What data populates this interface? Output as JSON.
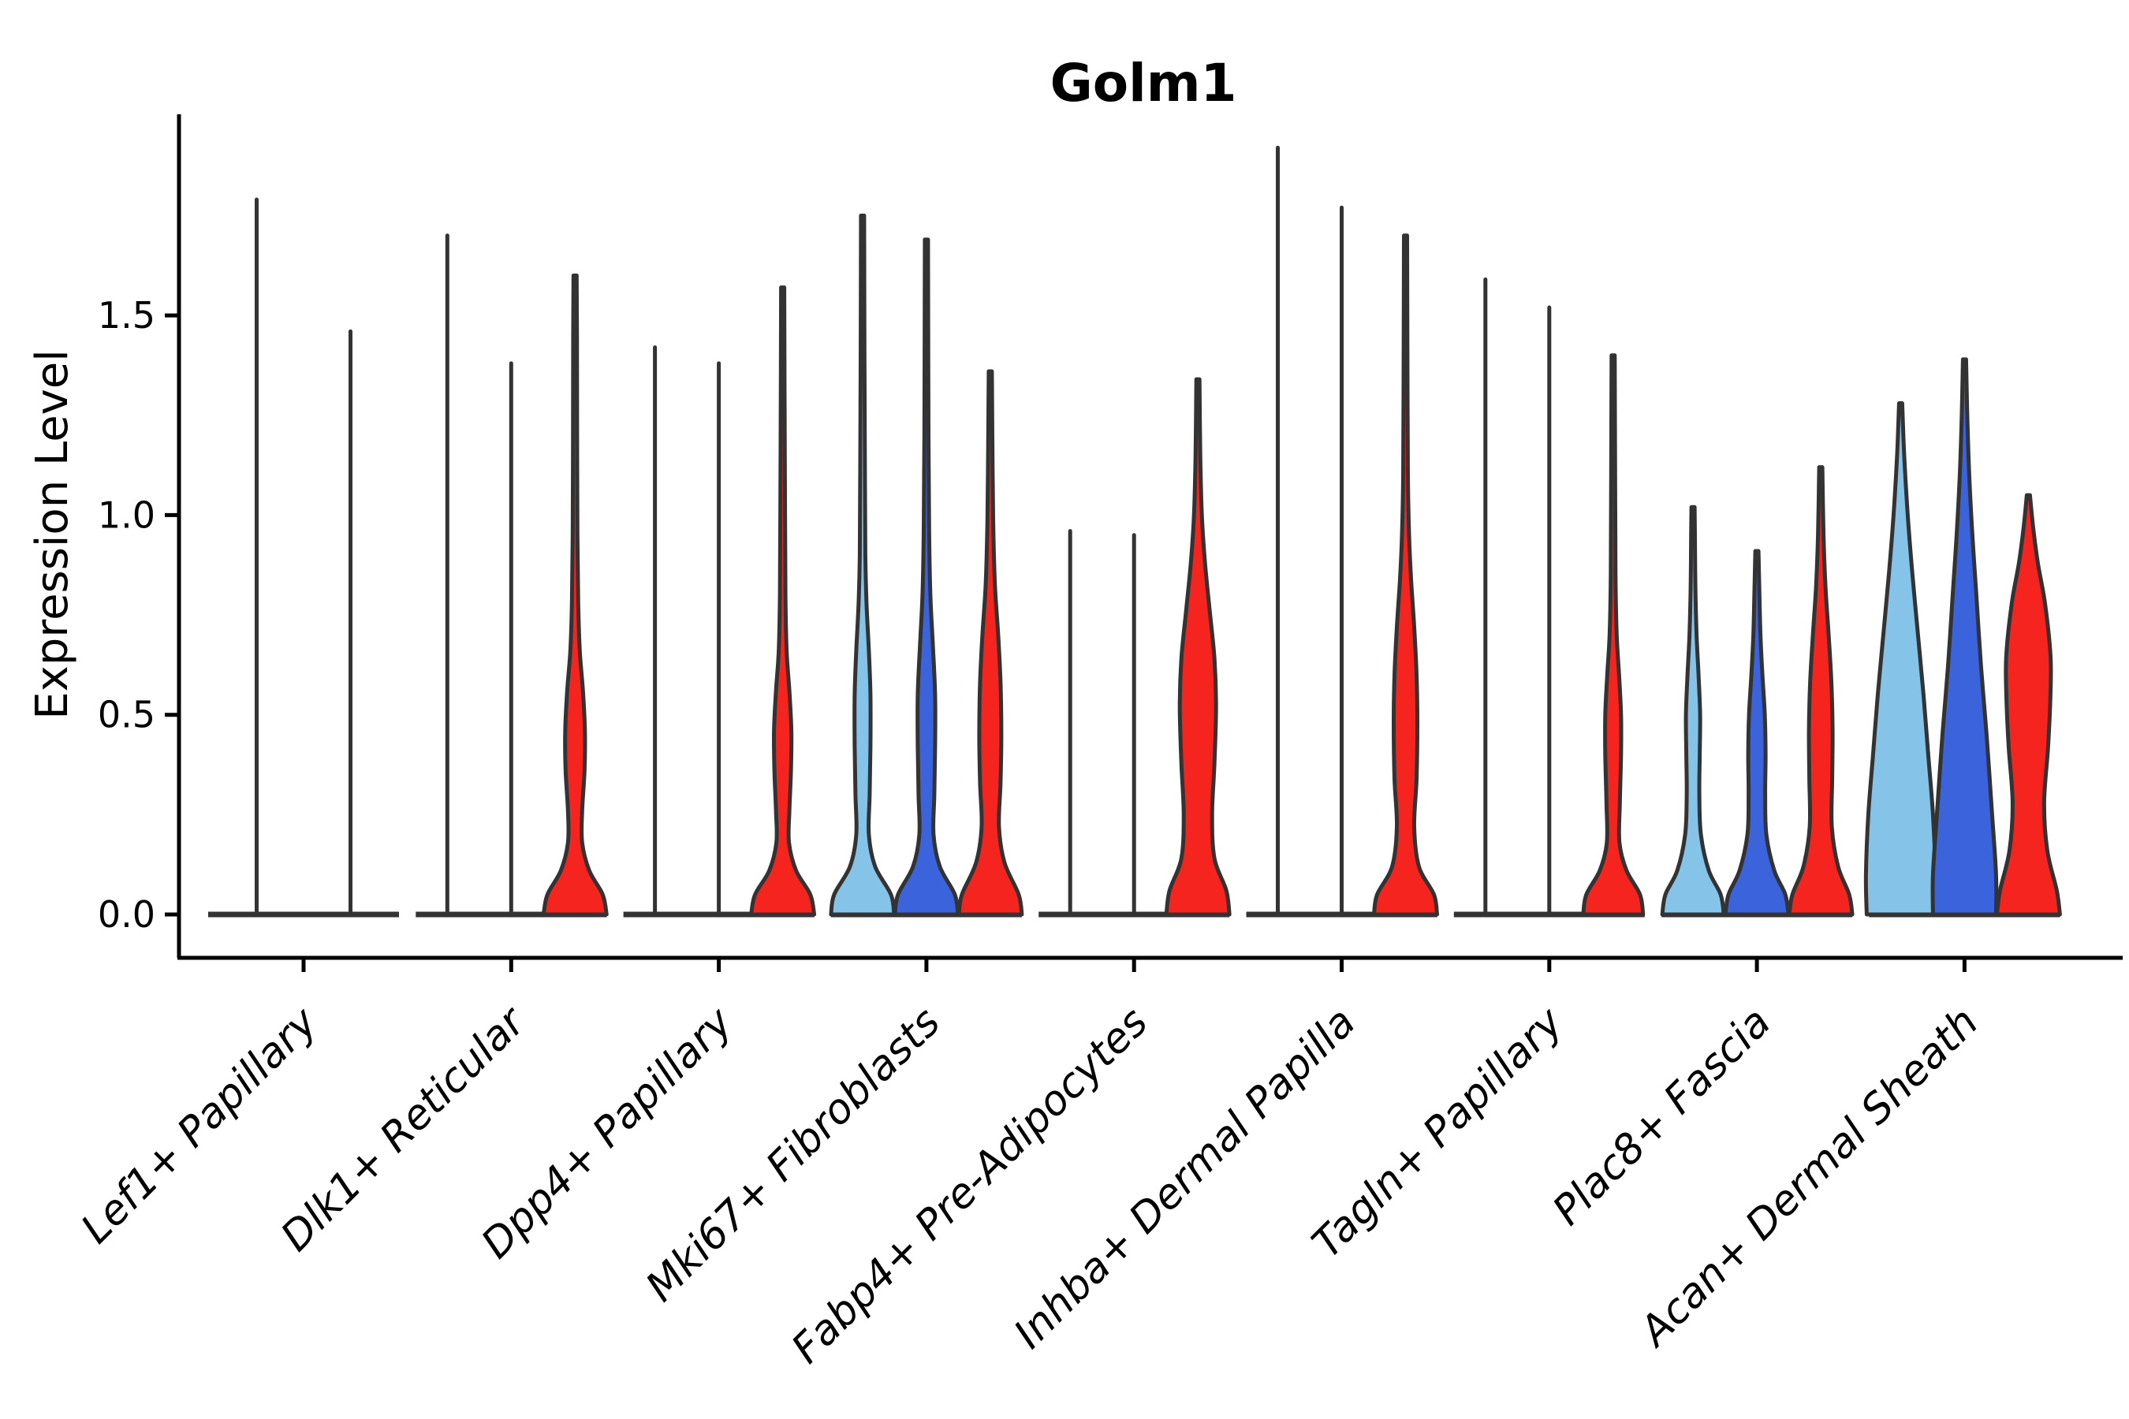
{
  "title": "Golm1",
  "axes": {
    "y_label": "Expression Level",
    "y_ticks": [
      {
        "label": "0.0",
        "value": 0.0
      },
      {
        "label": "0.5",
        "value": 0.5
      },
      {
        "label": "1.0",
        "value": 1.0
      },
      {
        "label": "1.5",
        "value": 1.5
      }
    ],
    "x_tick_rotation_deg": 45
  },
  "colors": {
    "lightblue": "#85C3E8",
    "darkblue": "#3B63DB",
    "red": "#F6241E",
    "outline": "#333333",
    "axis": "#000000"
  },
  "chart_data": {
    "type": "violin",
    "title": "Golm1",
    "xlabel": "",
    "ylabel": "Expression Level",
    "ylim": [
      -0.11,
      2.0
    ],
    "grid": false,
    "legend": "none",
    "splits": [
      "lightblue",
      "darkblue",
      "red"
    ],
    "groups": [
      {
        "category": "Lef1+ Papillary",
        "violins": [
          {
            "split": "lightblue",
            "max": 1.79,
            "profile": null
          },
          {
            "split": "darkblue",
            "max": 1.46,
            "profile": null
          }
        ]
      },
      {
        "category": "Dlk1+ Reticular",
        "violins": [
          {
            "split": "lightblue",
            "max": 1.7,
            "profile": null
          },
          {
            "split": "darkblue",
            "max": 1.38,
            "profile": null
          },
          {
            "split": "red",
            "max": 1.6,
            "profile": [
              [
                0,
                40
              ],
              [
                0.05,
                35
              ],
              [
                0.11,
                18
              ],
              [
                0.18,
                9
              ],
              [
                0.26,
                9
              ],
              [
                0.36,
                12
              ],
              [
                0.46,
                12.5
              ],
              [
                0.56,
                10
              ],
              [
                0.66,
                6
              ],
              [
                0.78,
                4
              ],
              [
                0.95,
                3
              ],
              [
                1.2,
                2.6
              ],
              [
                1.45,
                2.4
              ],
              [
                1.6,
                2
              ]
            ]
          }
        ]
      },
      {
        "category": "Dpp4+ Papillary",
        "violins": [
          {
            "split": "lightblue",
            "max": 1.42,
            "profile": null
          },
          {
            "split": "darkblue",
            "max": 1.38,
            "profile": null
          },
          {
            "split": "red",
            "max": 1.57,
            "profile": [
              [
                0,
                40
              ],
              [
                0.05,
                35
              ],
              [
                0.11,
                17
              ],
              [
                0.18,
                8
              ],
              [
                0.26,
                8.5
              ],
              [
                0.36,
                10.5
              ],
              [
                0.46,
                11
              ],
              [
                0.56,
                8.5
              ],
              [
                0.66,
                5
              ],
              [
                0.8,
                3.5
              ],
              [
                1.0,
                3
              ],
              [
                1.3,
                2.4
              ],
              [
                1.57,
                2
              ]
            ]
          }
        ]
      },
      {
        "category": "Mki67+ Fibroblasts",
        "violins": [
          {
            "split": "lightblue",
            "max": 1.75,
            "profile": [
              [
                0,
                40
              ],
              [
                0.05,
                36
              ],
              [
                0.12,
                16
              ],
              [
                0.2,
                8
              ],
              [
                0.3,
                9
              ],
              [
                0.42,
                10
              ],
              [
                0.55,
                10
              ],
              [
                0.66,
                8
              ],
              [
                0.78,
                5
              ],
              [
                0.9,
                3.5
              ],
              [
                1.1,
                3
              ],
              [
                1.4,
                2.4
              ],
              [
                1.75,
                2
              ]
            ]
          },
          {
            "split": "darkblue",
            "max": 1.69,
            "profile": [
              [
                0,
                40
              ],
              [
                0.05,
                36
              ],
              [
                0.12,
                17
              ],
              [
                0.2,
                9
              ],
              [
                0.3,
                10
              ],
              [
                0.42,
                11
              ],
              [
                0.55,
                11
              ],
              [
                0.68,
                8
              ],
              [
                0.8,
                5
              ],
              [
                0.95,
                3.5
              ],
              [
                1.2,
                2.6
              ],
              [
                1.69,
                2
              ]
            ]
          },
          {
            "split": "red",
            "max": 1.36,
            "profile": [
              [
                0,
                40
              ],
              [
                0.05,
                36
              ],
              [
                0.13,
                18
              ],
              [
                0.22,
                11
              ],
              [
                0.33,
                13
              ],
              [
                0.45,
                14
              ],
              [
                0.58,
                13
              ],
              [
                0.7,
                10
              ],
              [
                0.82,
                6
              ],
              [
                0.95,
                4
              ],
              [
                1.1,
                3
              ],
              [
                1.36,
                2
              ]
            ]
          }
        ]
      },
      {
        "category": "Fabp4+ Pre-Adipocytes",
        "violins": [
          {
            "split": "lightblue",
            "max": 0.96,
            "profile": null
          },
          {
            "split": "darkblue",
            "max": 0.95,
            "profile": null
          },
          {
            "split": "red",
            "max": 1.34,
            "profile": [
              [
                0,
                40
              ],
              [
                0.06,
                36
              ],
              [
                0.14,
                21
              ],
              [
                0.25,
                18
              ],
              [
                0.38,
                21
              ],
              [
                0.52,
                23
              ],
              [
                0.64,
                21
              ],
              [
                0.76,
                15
              ],
              [
                0.88,
                9
              ],
              [
                1.0,
                5
              ],
              [
                1.15,
                3
              ],
              [
                1.34,
                2
              ]
            ]
          }
        ]
      },
      {
        "category": "Inhba+ Dermal Papilla",
        "violins": [
          {
            "split": "lightblue",
            "max": 1.92,
            "profile": null
          },
          {
            "split": "darkblue",
            "max": 1.77,
            "profile": null
          },
          {
            "split": "red",
            "max": 1.7,
            "profile": [
              [
                0,
                40
              ],
              [
                0.05,
                36
              ],
              [
                0.12,
                17
              ],
              [
                0.22,
                11
              ],
              [
                0.34,
                14
              ],
              [
                0.48,
                15
              ],
              [
                0.6,
                14
              ],
              [
                0.72,
                11
              ],
              [
                0.84,
                7
              ],
              [
                0.95,
                4.5
              ],
              [
                1.1,
                3
              ],
              [
                1.4,
                2.4
              ],
              [
                1.7,
                2
              ]
            ]
          }
        ]
      },
      {
        "category": "Tagln+ Papillary",
        "violins": [
          {
            "split": "lightblue",
            "max": 1.59,
            "profile": null
          },
          {
            "split": "darkblue",
            "max": 1.52,
            "profile": null
          },
          {
            "split": "red",
            "max": 1.4,
            "profile": [
              [
                0,
                38
              ],
              [
                0.05,
                34
              ],
              [
                0.11,
                17
              ],
              [
                0.18,
                8
              ],
              [
                0.28,
                8.5
              ],
              [
                0.4,
                10
              ],
              [
                0.5,
                10
              ],
              [
                0.6,
                7.5
              ],
              [
                0.7,
                4.5
              ],
              [
                0.85,
                3
              ],
              [
                1.1,
                2.5
              ],
              [
                1.4,
                2
              ]
            ]
          }
        ]
      },
      {
        "category": "Plac8+ Fascia",
        "violins": [
          {
            "split": "lightblue",
            "max": 1.02,
            "profile": [
              [
                0,
                39
              ],
              [
                0.05,
                35
              ],
              [
                0.11,
                20
              ],
              [
                0.2,
                10
              ],
              [
                0.3,
                8
              ],
              [
                0.4,
                8.5
              ],
              [
                0.5,
                9
              ],
              [
                0.6,
                7
              ],
              [
                0.7,
                4.5
              ],
              [
                0.82,
                3
              ],
              [
                0.95,
                2.4
              ],
              [
                1.02,
                2
              ]
            ]
          },
          {
            "split": "darkblue",
            "max": 0.91,
            "profile": [
              [
                0,
                40
              ],
              [
                0.05,
                36
              ],
              [
                0.11,
                22
              ],
              [
                0.2,
                12
              ],
              [
                0.3,
                10.5
              ],
              [
                0.4,
                11
              ],
              [
                0.5,
                10
              ],
              [
                0.6,
                7
              ],
              [
                0.7,
                4.5
              ],
              [
                0.82,
                3
              ],
              [
                0.91,
                2
              ]
            ]
          },
          {
            "split": "red",
            "max": 1.12,
            "profile": [
              [
                0,
                40
              ],
              [
                0.05,
                36
              ],
              [
                0.12,
                22
              ],
              [
                0.22,
                14
              ],
              [
                0.34,
                14.5
              ],
              [
                0.46,
                15
              ],
              [
                0.58,
                13.5
              ],
              [
                0.7,
                10
              ],
              [
                0.82,
                6
              ],
              [
                0.95,
                3.5
              ],
              [
                1.12,
                2
              ]
            ]
          }
        ]
      },
      {
        "category": "Acan+ Dermal Sheath",
        "violins": [
          {
            "split": "lightblue",
            "max": 1.28,
            "profile": [
              [
                0,
                43
              ],
              [
                0.1,
                44
              ],
              [
                0.25,
                41
              ],
              [
                0.4,
                35
              ],
              [
                0.55,
                29
              ],
              [
                0.7,
                22
              ],
              [
                0.85,
                15
              ],
              [
                1.0,
                9
              ],
              [
                1.15,
                4.5
              ],
              [
                1.28,
                2
              ]
            ]
          },
          {
            "split": "darkblue",
            "max": 1.39,
            "profile": [
              [
                0,
                40
              ],
              [
                0.1,
                40
              ],
              [
                0.25,
                35
              ],
              [
                0.45,
                28
              ],
              [
                0.62,
                21
              ],
              [
                0.8,
                15
              ],
              [
                0.95,
                10
              ],
              [
                1.1,
                6
              ],
              [
                1.25,
                3.5
              ],
              [
                1.39,
                2
              ]
            ]
          },
          {
            "split": "red",
            "max": 1.05,
            "profile": [
              [
                0,
                40
              ],
              [
                0.06,
                36
              ],
              [
                0.16,
                24
              ],
              [
                0.28,
                20
              ],
              [
                0.42,
                25
              ],
              [
                0.55,
                28
              ],
              [
                0.65,
                28
              ],
              [
                0.78,
                21
              ],
              [
                0.88,
                12
              ],
              [
                0.97,
                6
              ],
              [
                1.05,
                2
              ]
            ]
          }
        ]
      }
    ]
  }
}
